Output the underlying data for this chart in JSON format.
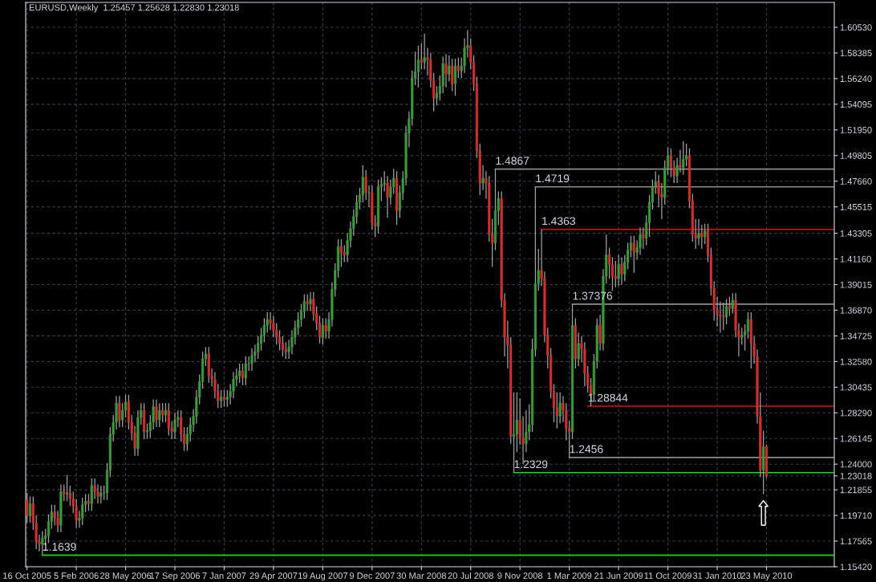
{
  "chart_data": {
    "type": "candlestick",
    "title": "EURUSD,Weekly  1.25457 1.25628 1.22830 1.23018",
    "x": [
      "2005-10-16",
      "2005-10-23",
      "2005-10-30",
      "2005-11-06",
      "2005-11-13",
      "2005-11-20",
      "2005-11-27",
      "2005-12-04",
      "2005-12-11",
      "2005-12-18",
      "2005-12-25",
      "2006-01-01",
      "2006-01-08",
      "2006-01-15",
      "2006-01-22",
      "2006-01-29",
      "2006-02-05",
      "2006-02-12",
      "2006-02-19",
      "2006-02-26",
      "2006-03-05",
      "2006-03-12",
      "2006-03-19",
      "2006-03-26",
      "2006-04-02",
      "2006-04-09",
      "2006-04-16",
      "2006-04-23",
      "2006-04-30",
      "2006-05-07",
      "2006-05-14",
      "2006-05-21",
      "2006-05-28",
      "2006-06-04",
      "2006-06-11",
      "2006-06-18",
      "2006-06-25",
      "2006-07-02",
      "2006-07-09",
      "2006-07-16",
      "2006-07-23",
      "2006-07-30",
      "2006-08-06",
      "2006-08-13",
      "2006-08-20",
      "2006-08-27",
      "2006-09-03",
      "2006-09-10",
      "2006-09-17",
      "2006-09-24",
      "2006-10-01",
      "2006-10-08",
      "2006-10-15",
      "2006-10-22",
      "2006-10-29",
      "2006-11-05",
      "2006-11-12",
      "2006-11-19",
      "2006-11-26",
      "2006-12-03",
      "2006-12-10",
      "2006-12-17",
      "2006-12-24",
      "2006-12-31",
      "2007-01-07",
      "2007-01-14",
      "2007-01-21",
      "2007-01-28",
      "2007-02-04",
      "2007-02-11",
      "2007-02-18",
      "2007-02-25",
      "2007-03-04",
      "2007-03-11",
      "2007-03-18",
      "2007-03-25",
      "2007-04-01",
      "2007-04-08",
      "2007-04-15",
      "2007-04-22",
      "2007-04-29",
      "2007-05-06",
      "2007-05-13",
      "2007-05-20",
      "2007-05-27",
      "2007-06-03",
      "2007-06-10",
      "2007-06-17",
      "2007-06-24",
      "2007-07-01",
      "2007-07-08",
      "2007-07-15",
      "2007-07-22",
      "2007-07-29",
      "2007-08-05",
      "2007-08-12",
      "2007-08-19",
      "2007-08-26",
      "2007-09-02",
      "2007-09-09",
      "2007-09-16",
      "2007-09-23",
      "2007-09-30",
      "2007-10-07",
      "2007-10-14",
      "2007-10-21",
      "2007-10-28",
      "2007-11-04",
      "2007-11-11",
      "2007-11-18",
      "2007-11-25",
      "2007-12-02",
      "2007-12-09",
      "2007-12-16",
      "2007-12-23",
      "2007-12-30",
      "2008-01-06",
      "2008-01-13",
      "2008-01-20",
      "2008-01-27",
      "2008-02-03",
      "2008-02-10",
      "2008-02-17",
      "2008-02-24",
      "2008-03-02",
      "2008-03-09",
      "2008-03-16",
      "2008-03-23",
      "2008-03-30",
      "2008-04-06",
      "2008-04-13",
      "2008-04-20",
      "2008-04-27",
      "2008-05-04",
      "2008-05-11",
      "2008-05-18",
      "2008-05-25",
      "2008-06-01",
      "2008-06-08",
      "2008-06-15",
      "2008-06-22",
      "2008-06-29",
      "2008-07-06",
      "2008-07-13",
      "2008-07-20",
      "2008-07-27",
      "2008-08-03",
      "2008-08-10",
      "2008-08-17",
      "2008-08-24",
      "2008-08-31",
      "2008-09-07",
      "2008-09-14",
      "2008-09-21",
      "2008-09-28",
      "2008-10-05",
      "2008-10-12",
      "2008-10-19",
      "2008-10-26",
      "2008-11-02",
      "2008-11-09",
      "2008-11-16",
      "2008-11-23",
      "2008-11-30",
      "2008-12-07",
      "2008-12-14",
      "2008-12-21",
      "2008-12-28",
      "2009-01-04",
      "2009-01-11",
      "2009-01-18",
      "2009-01-25",
      "2009-02-01",
      "2009-02-08",
      "2009-02-15",
      "2009-02-22",
      "2009-03-01",
      "2009-03-08",
      "2009-03-15",
      "2009-03-22",
      "2009-03-29",
      "2009-04-05",
      "2009-04-12",
      "2009-04-19",
      "2009-04-26",
      "2009-05-03",
      "2009-05-10",
      "2009-05-17",
      "2009-05-24",
      "2009-05-31",
      "2009-06-07",
      "2009-06-14",
      "2009-06-21",
      "2009-06-28",
      "2009-07-05",
      "2009-07-12",
      "2009-07-19",
      "2009-07-26",
      "2009-08-02",
      "2009-08-09",
      "2009-08-16",
      "2009-08-23",
      "2009-08-30",
      "2009-09-06",
      "2009-09-13",
      "2009-09-20",
      "2009-09-27",
      "2009-10-04",
      "2009-10-11",
      "2009-10-18",
      "2009-10-25",
      "2009-11-01",
      "2009-11-08",
      "2009-11-15",
      "2009-11-22",
      "2009-11-29",
      "2009-12-06",
      "2009-12-13",
      "2009-12-20",
      "2009-12-27",
      "2010-01-03",
      "2010-01-10",
      "2010-01-17",
      "2010-01-24",
      "2010-01-31",
      "2010-02-07",
      "2010-02-14",
      "2010-02-21",
      "2010-02-28",
      "2010-03-07",
      "2010-03-14",
      "2010-03-21",
      "2010-03-28",
      "2010-04-04",
      "2010-04-11",
      "2010-04-18",
      "2010-04-25",
      "2010-05-02",
      "2010-05-09",
      "2010-05-16",
      "2010-05-23"
    ],
    "ohlc": [
      [
        1.21,
        1.216,
        1.191,
        1.197
      ],
      [
        1.197,
        1.213,
        1.191,
        1.207
      ],
      [
        1.207,
        1.213,
        1.185,
        1.191
      ],
      [
        1.191,
        1.197,
        1.169,
        1.175
      ],
      [
        1.175,
        1.181,
        1.167,
        1.173
      ],
      [
        1.173,
        1.184,
        1.1639,
        1.178
      ],
      [
        1.178,
        1.186,
        1.172,
        1.18
      ],
      [
        1.18,
        1.198,
        1.174,
        1.192
      ],
      [
        1.192,
        1.206,
        1.186,
        1.2
      ],
      [
        1.2,
        1.206,
        1.189,
        1.195
      ],
      [
        1.195,
        1.201,
        1.183,
        1.189
      ],
      [
        1.189,
        1.223,
        1.183,
        1.217
      ],
      [
        1.217,
        1.223,
        1.209,
        1.215
      ],
      [
        1.215,
        1.231,
        1.209,
        1.216
      ],
      [
        1.216,
        1.222,
        1.205,
        1.211
      ],
      [
        1.211,
        1.217,
        1.199,
        1.205
      ],
      [
        1.205,
        1.211,
        1.187,
        1.193
      ],
      [
        1.193,
        1.201,
        1.187,
        1.195
      ],
      [
        1.195,
        1.212,
        1.189,
        1.206
      ],
      [
        1.206,
        1.215,
        1.2,
        1.209
      ],
      [
        1.209,
        1.215,
        1.201,
        1.207
      ],
      [
        1.207,
        1.228,
        1.201,
        1.222
      ],
      [
        1.222,
        1.228,
        1.211,
        1.217
      ],
      [
        1.217,
        1.223,
        1.207,
        1.213
      ],
      [
        1.213,
        1.222,
        1.207,
        1.216
      ],
      [
        1.216,
        1.222,
        1.21,
        1.216
      ],
      [
        1.216,
        1.241,
        1.21,
        1.235
      ],
      [
        1.235,
        1.271,
        1.229,
        1.265
      ],
      [
        1.265,
        1.281,
        1.259,
        1.275
      ],
      [
        1.275,
        1.297,
        1.269,
        1.291
      ],
      [
        1.291,
        1.297,
        1.271,
        1.277
      ],
      [
        1.277,
        1.291,
        1.271,
        1.285
      ],
      [
        1.285,
        1.298,
        1.279,
        1.292
      ],
      [
        1.292,
        1.298,
        1.269,
        1.275
      ],
      [
        1.275,
        1.281,
        1.26,
        1.266
      ],
      [
        1.266,
        1.272,
        1.247,
        1.253
      ],
      [
        1.253,
        1.285,
        1.247,
        1.279
      ],
      [
        1.279,
        1.291,
        1.273,
        1.285
      ],
      [
        1.285,
        1.291,
        1.261,
        1.267
      ],
      [
        1.267,
        1.274,
        1.261,
        1.268
      ],
      [
        1.268,
        1.281,
        1.262,
        1.275
      ],
      [
        1.275,
        1.294,
        1.269,
        1.288
      ],
      [
        1.288,
        1.294,
        1.271,
        1.277
      ],
      [
        1.277,
        1.291,
        1.271,
        1.285
      ],
      [
        1.285,
        1.291,
        1.275,
        1.281
      ],
      [
        1.281,
        1.291,
        1.275,
        1.285
      ],
      [
        1.285,
        1.291,
        1.264,
        1.27
      ],
      [
        1.27,
        1.276,
        1.261,
        1.267
      ],
      [
        1.267,
        1.283,
        1.261,
        1.277
      ],
      [
        1.277,
        1.285,
        1.271,
        1.279
      ],
      [
        1.279,
        1.285,
        1.259,
        1.265
      ],
      [
        1.265,
        1.271,
        1.251,
        1.257
      ],
      [
        1.257,
        1.271,
        1.251,
        1.265
      ],
      [
        1.265,
        1.279,
        1.259,
        1.273
      ],
      [
        1.273,
        1.286,
        1.267,
        1.28
      ],
      [
        1.28,
        1.302,
        1.274,
        1.296
      ],
      [
        1.296,
        1.315,
        1.29,
        1.309
      ],
      [
        1.309,
        1.334,
        1.303,
        1.328
      ],
      [
        1.328,
        1.338,
        1.322,
        1.332
      ],
      [
        1.332,
        1.338,
        1.308,
        1.314
      ],
      [
        1.314,
        1.32,
        1.305,
        1.311
      ],
      [
        1.311,
        1.317,
        1.295,
        1.301
      ],
      [
        1.301,
        1.307,
        1.287,
        1.293
      ],
      [
        1.293,
        1.302,
        1.287,
        1.296
      ],
      [
        1.296,
        1.302,
        1.288,
        1.294
      ],
      [
        1.294,
        1.302,
        1.288,
        1.296
      ],
      [
        1.296,
        1.307,
        1.29,
        1.301
      ],
      [
        1.301,
        1.317,
        1.295,
        1.311
      ],
      [
        1.311,
        1.32,
        1.305,
        1.314
      ],
      [
        1.314,
        1.324,
        1.308,
        1.318
      ],
      [
        1.318,
        1.324,
        1.306,
        1.312
      ],
      [
        1.312,
        1.33,
        1.306,
        1.324
      ],
      [
        1.324,
        1.33,
        1.318,
        1.324
      ],
      [
        1.324,
        1.337,
        1.318,
        1.331
      ],
      [
        1.331,
        1.34,
        1.325,
        1.334
      ],
      [
        1.334,
        1.347,
        1.328,
        1.341
      ],
      [
        1.341,
        1.354,
        1.335,
        1.348
      ],
      [
        1.348,
        1.362,
        1.342,
        1.356
      ],
      [
        1.356,
        1.367,
        1.35,
        1.361
      ],
      [
        1.361,
        1.367,
        1.352,
        1.358
      ],
      [
        1.358,
        1.364,
        1.346,
        1.352
      ],
      [
        1.352,
        1.358,
        1.34,
        1.346
      ],
      [
        1.346,
        1.352,
        1.335,
        1.341
      ],
      [
        1.341,
        1.347,
        1.33,
        1.336
      ],
      [
        1.336,
        1.342,
        1.328,
        1.334
      ],
      [
        1.334,
        1.344,
        1.328,
        1.338
      ],
      [
        1.338,
        1.352,
        1.332,
        1.346
      ],
      [
        1.346,
        1.36,
        1.34,
        1.354
      ],
      [
        1.354,
        1.367,
        1.348,
        1.361
      ],
      [
        1.361,
        1.374,
        1.355,
        1.368
      ],
      [
        1.368,
        1.382,
        1.362,
        1.376
      ],
      [
        1.376,
        1.382,
        1.368,
        1.374
      ],
      [
        1.374,
        1.384,
        1.368,
        1.378
      ],
      [
        1.378,
        1.384,
        1.36,
        1.366
      ],
      [
        1.366,
        1.372,
        1.352,
        1.358
      ],
      [
        1.358,
        1.364,
        1.341,
        1.346
      ],
      [
        1.346,
        1.362,
        1.34,
        1.356
      ],
      [
        1.356,
        1.362,
        1.345,
        1.351
      ],
      [
        1.351,
        1.367,
        1.345,
        1.361
      ],
      [
        1.361,
        1.392,
        1.355,
        1.386
      ],
      [
        1.386,
        1.408,
        1.38,
        1.402
      ],
      [
        1.402,
        1.428,
        1.396,
        1.422
      ],
      [
        1.422,
        1.428,
        1.405,
        1.417
      ],
      [
        1.417,
        1.423,
        1.409,
        1.415
      ],
      [
        1.415,
        1.433,
        1.409,
        1.427
      ],
      [
        1.427,
        1.443,
        1.421,
        1.437
      ],
      [
        1.437,
        1.453,
        1.431,
        1.447
      ],
      [
        1.447,
        1.465,
        1.441,
        1.459
      ],
      [
        1.459,
        1.471,
        1.453,
        1.465
      ],
      [
        1.465,
        1.49,
        1.459,
        1.48
      ],
      [
        1.48,
        1.486,
        1.461,
        1.467
      ],
      [
        1.467,
        1.473,
        1.455,
        1.467
      ],
      [
        1.467,
        1.473,
        1.436,
        1.442
      ],
      [
        1.442,
        1.448,
        1.43,
        1.439
      ],
      [
        1.439,
        1.478,
        1.433,
        1.472
      ],
      [
        1.472,
        1.48,
        1.46,
        1.474
      ],
      [
        1.474,
        1.485,
        1.468,
        1.475
      ],
      [
        1.475,
        1.481,
        1.446,
        1.463
      ],
      [
        1.463,
        1.478,
        1.457,
        1.472
      ],
      [
        1.472,
        1.487,
        1.466,
        1.479
      ],
      [
        1.479,
        1.485,
        1.44,
        1.452
      ],
      [
        1.452,
        1.473,
        1.446,
        1.467
      ],
      [
        1.467,
        1.485,
        1.461,
        1.479
      ],
      [
        1.479,
        1.523,
        1.473,
        1.517
      ],
      [
        1.517,
        1.535,
        1.505,
        1.529
      ],
      [
        1.529,
        1.569,
        1.523,
        1.563
      ],
      [
        1.563,
        1.585,
        1.557,
        1.568
      ],
      [
        1.568,
        1.59,
        1.555,
        1.578
      ],
      [
        1.578,
        1.592,
        1.57,
        1.576
      ],
      [
        1.576,
        1.6,
        1.57,
        1.58
      ],
      [
        1.58,
        1.588,
        1.565,
        1.578
      ],
      [
        1.578,
        1.584,
        1.555,
        1.561
      ],
      [
        1.561,
        1.567,
        1.535,
        1.546
      ],
      [
        1.546,
        1.556,
        1.54,
        1.55
      ],
      [
        1.55,
        1.565,
        1.544,
        1.556
      ],
      [
        1.556,
        1.581,
        1.55,
        1.575
      ],
      [
        1.575,
        1.583,
        1.555,
        1.566
      ],
      [
        1.566,
        1.582,
        1.56,
        1.573
      ],
      [
        1.573,
        1.579,
        1.552,
        1.558
      ],
      [
        1.558,
        1.579,
        1.548,
        1.573
      ],
      [
        1.573,
        1.58,
        1.563,
        1.569
      ],
      [
        1.569,
        1.58,
        1.563,
        1.573
      ],
      [
        1.573,
        1.596,
        1.567,
        1.588
      ],
      [
        1.588,
        1.603,
        1.58,
        1.59
      ],
      [
        1.59,
        1.596,
        1.57,
        1.576
      ],
      [
        1.576,
        1.582,
        1.552,
        1.558
      ],
      [
        1.558,
        1.564,
        1.496,
        1.502
      ],
      [
        1.502,
        1.508,
        1.465,
        1.475
      ],
      [
        1.475,
        1.49,
        1.469,
        1.479
      ],
      [
        1.479,
        1.485,
        1.462,
        1.475
      ],
      [
        1.475,
        1.481,
        1.426,
        1.432
      ],
      [
        1.432,
        1.445,
        1.405,
        1.425
      ],
      [
        1.425,
        1.4867,
        1.419,
        1.452
      ],
      [
        1.452,
        1.468,
        1.44,
        1.462
      ],
      [
        1.462,
        1.468,
        1.371,
        1.377
      ],
      [
        1.377,
        1.383,
        1.33,
        1.346
      ],
      [
        1.346,
        1.36,
        1.32,
        1.34
      ],
      [
        1.34,
        1.346,
        1.257,
        1.263
      ],
      [
        1.263,
        1.3,
        1.2329,
        1.265
      ],
      [
        1.265,
        1.3,
        1.25,
        1.277
      ],
      [
        1.277,
        1.295,
        1.256,
        1.262
      ],
      [
        1.262,
        1.28,
        1.24,
        1.257
      ],
      [
        1.257,
        1.285,
        1.25,
        1.267
      ],
      [
        1.267,
        1.29,
        1.26,
        1.273
      ],
      [
        1.273,
        1.345,
        1.267,
        1.336
      ],
      [
        1.336,
        1.4719,
        1.33,
        1.391
      ],
      [
        1.391,
        1.42,
        1.385,
        1.402
      ],
      [
        1.402,
        1.4363,
        1.389,
        1.395
      ],
      [
        1.395,
        1.401,
        1.342,
        1.348
      ],
      [
        1.348,
        1.354,
        1.32,
        1.331
      ],
      [
        1.331,
        1.337,
        1.295,
        1.301
      ],
      [
        1.301,
        1.307,
        1.275,
        1.287
      ],
      [
        1.287,
        1.3,
        1.27,
        1.28
      ],
      [
        1.28,
        1.3,
        1.274,
        1.291
      ],
      [
        1.291,
        1.297,
        1.275,
        1.285
      ],
      [
        1.285,
        1.291,
        1.26,
        1.27
      ],
      [
        1.27,
        1.276,
        1.2456,
        1.267
      ],
      [
        1.267,
        1.37376,
        1.261,
        1.356
      ],
      [
        1.356,
        1.362,
        1.32,
        1.328
      ],
      [
        1.328,
        1.35,
        1.322,
        1.341
      ],
      [
        1.341,
        1.347,
        1.325,
        1.336
      ],
      [
        1.336,
        1.342,
        1.305,
        1.316
      ],
      [
        1.316,
        1.322,
        1.3,
        1.306
      ],
      [
        1.306,
        1.312,
        1.28844,
        1.298
      ],
      [
        1.298,
        1.332,
        1.292,
        1.326
      ],
      [
        1.326,
        1.362,
        1.32,
        1.356
      ],
      [
        1.356,
        1.365,
        1.335,
        1.341
      ],
      [
        1.341,
        1.403,
        1.335,
        1.397
      ],
      [
        1.397,
        1.432,
        1.391,
        1.415
      ],
      [
        1.415,
        1.421,
        1.395,
        1.407
      ],
      [
        1.407,
        1.413,
        1.385,
        1.397
      ],
      [
        1.397,
        1.41,
        1.388,
        1.395
      ],
      [
        1.395,
        1.415,
        1.389,
        1.407
      ],
      [
        1.407,
        1.413,
        1.39,
        1.399
      ],
      [
        1.399,
        1.415,
        1.393,
        1.409
      ],
      [
        1.409,
        1.425,
        1.403,
        1.419
      ],
      [
        1.419,
        1.431,
        1.413,
        1.425
      ],
      [
        1.425,
        1.431,
        1.4,
        1.417
      ],
      [
        1.417,
        1.427,
        1.411,
        1.421
      ],
      [
        1.421,
        1.438,
        1.415,
        1.432
      ],
      [
        1.432,
        1.438,
        1.42,
        1.429
      ],
      [
        1.429,
        1.448,
        1.423,
        1.442
      ],
      [
        1.442,
        1.465,
        1.43,
        1.459
      ],
      [
        1.459,
        1.478,
        1.453,
        1.472
      ],
      [
        1.472,
        1.485,
        1.466,
        1.476
      ],
      [
        1.476,
        1.482,
        1.455,
        1.466
      ],
      [
        1.466,
        1.475,
        1.445,
        1.463
      ],
      [
        1.463,
        1.494,
        1.457,
        1.488
      ],
      [
        1.488,
        1.505,
        1.482,
        1.498
      ],
      [
        1.498,
        1.504,
        1.48,
        1.488
      ],
      [
        1.488,
        1.494,
        1.475,
        1.481
      ],
      [
        1.481,
        1.496,
        1.475,
        1.49
      ],
      [
        1.49,
        1.503,
        1.484,
        1.488
      ],
      [
        1.488,
        1.51,
        1.482,
        1.495
      ],
      [
        1.495,
        1.508,
        1.489,
        1.498
      ],
      [
        1.498,
        1.504,
        1.454,
        1.46
      ],
      [
        1.46,
        1.466,
        1.426,
        1.432
      ],
      [
        1.432,
        1.445,
        1.42,
        1.429
      ],
      [
        1.429,
        1.445,
        1.423,
        1.433
      ],
      [
        1.433,
        1.44,
        1.42,
        1.43
      ],
      [
        1.43,
        1.441,
        1.424,
        1.435
      ],
      [
        1.435,
        1.441,
        1.409,
        1.415
      ],
      [
        1.415,
        1.421,
        1.381,
        1.387
      ],
      [
        1.387,
        1.393,
        1.36,
        1.369
      ],
      [
        1.369,
        1.38,
        1.355,
        1.365
      ],
      [
        1.365,
        1.376,
        1.35,
        1.364
      ],
      [
        1.364,
        1.375,
        1.352,
        1.363
      ],
      [
        1.363,
        1.378,
        1.357,
        1.372
      ],
      [
        1.372,
        1.38,
        1.364,
        1.37
      ],
      [
        1.37,
        1.383,
        1.366,
        1.377
      ],
      [
        1.377,
        1.383,
        1.346,
        1.352
      ],
      [
        1.352,
        1.358,
        1.33,
        1.346
      ],
      [
        1.346,
        1.354,
        1.34,
        1.348
      ],
      [
        1.348,
        1.357,
        1.335,
        1.351
      ],
      [
        1.351,
        1.367,
        1.345,
        1.361
      ],
      [
        1.361,
        1.367,
        1.32,
        1.341
      ],
      [
        1.341,
        1.347,
        1.324,
        1.33
      ],
      [
        1.33,
        1.336,
        1.274,
        1.28
      ],
      [
        1.28,
        1.3,
        1.229,
        1.235
      ],
      [
        1.235,
        1.268,
        1.215,
        1.25457
      ],
      [
        1.25457,
        1.25628,
        1.2283,
        1.23018
      ]
    ],
    "series": [
      {
        "type": "line",
        "x": [
          "2008-09-14",
          "2010-10-24"
        ],
        "values": [
          1.4867,
          1.4867
        ],
        "color": "#8c8c8c"
      },
      {
        "type": "line",
        "x": [
          "2008-12-14",
          "2010-10-24"
        ],
        "values": [
          1.4719,
          1.4719
        ],
        "color": "#8c8c8c"
      },
      {
        "type": "line",
        "x": [
          "2008-12-28",
          "2010-10-24"
        ],
        "values": [
          1.4363,
          1.4363
        ],
        "color": "#e01010"
      },
      {
        "type": "line",
        "x": [
          "2009-03-08",
          "2010-10-24"
        ],
        "values": [
          1.37376,
          1.37376
        ],
        "color": "#8c8c8c"
      },
      {
        "type": "line",
        "x": [
          "2009-04-12",
          "2010-10-24"
        ],
        "values": [
          1.28844,
          1.28844
        ],
        "color": "#e01010"
      },
      {
        "type": "line",
        "x": [
          "2009-03-01",
          "2010-10-24"
        ],
        "values": [
          1.2456,
          1.2456
        ],
        "color": "#8c8c8c"
      },
      {
        "type": "line",
        "x": [
          "2008-10-26",
          "2010-10-24"
        ],
        "values": [
          1.2329,
          1.2329
        ],
        "color": "#10e010"
      },
      {
        "type": "line",
        "x": [
          "2005-11-20",
          "2010-10-24"
        ],
        "values": [
          1.1639,
          1.1639
        ],
        "color": "#10e010"
      }
    ],
    "annotations": [
      {
        "text": "1.4867",
        "x": "2008-09-14",
        "y": 1.4867
      },
      {
        "text": "1.4719",
        "x": "2008-12-14",
        "y": 1.4719
      },
      {
        "text": "1.4363",
        "x": "2008-12-28",
        "y": 1.4363
      },
      {
        "text": "1.37376",
        "x": "2009-03-08",
        "y": 1.37376
      },
      {
        "text": "1.28844",
        "x": "2009-04-12",
        "y": 1.28844
      },
      {
        "text": "1.2456",
        "x": "2009-03-01",
        "y": 1.2456
      },
      {
        "text": "1.2329",
        "x": "2008-10-26",
        "y": 1.2329
      },
      {
        "text": "1.1639",
        "x": "2005-11-20",
        "y": 1.1639
      }
    ],
    "xlim": [
      "2005-10-13",
      "2010-10-24"
    ],
    "xticks": [
      {
        "value": "2005-10-16",
        "label": "16 Oct 2005"
      },
      {
        "value": "2006-02-05",
        "label": "5 Feb 2006"
      },
      {
        "value": "2006-05-28",
        "label": "28 May 2006"
      },
      {
        "value": "2006-09-17",
        "label": "17 Sep 2006"
      },
      {
        "value": "2007-01-07",
        "label": "7 Jan 2007"
      },
      {
        "value": "2007-04-29",
        "label": "29 Apr 2007"
      },
      {
        "value": "2007-08-19",
        "label": "19 Aug 2007"
      },
      {
        "value": "2007-12-09",
        "label": "9 Dec 2007"
      },
      {
        "value": "2008-03-30",
        "label": "30 Mar 2008"
      },
      {
        "value": "2008-07-20",
        "label": "20 Jul 2008"
      },
      {
        "value": "2008-11-09",
        "label": "9 Nov 2008"
      },
      {
        "value": "2009-03-01",
        "label": "1 Mar 2009"
      },
      {
        "value": "2009-06-21",
        "label": "21 Jun 2009"
      },
      {
        "value": "2009-10-11",
        "label": "11 Oct 2009"
      },
      {
        "value": "2010-01-31",
        "label": "31 Jan 2010"
      },
      {
        "value": "2010-05-23",
        "label": "23 May 2010"
      }
    ],
    "ylim": [
      1.1542,
      1.6261
    ],
    "yticks": [
      {
        "value": 1.6053,
        "label": "1.60530"
      },
      {
        "value": 1.58385,
        "label": "1.58385"
      },
      {
        "value": 1.5624,
        "label": "1.56240"
      },
      {
        "value": 1.54095,
        "label": "1.54095"
      },
      {
        "value": 1.5195,
        "label": "1.51950"
      },
      {
        "value": 1.49805,
        "label": "1.49805"
      },
      {
        "value": 1.4766,
        "label": "1.47660"
      },
      {
        "value": 1.45515,
        "label": "1.45515"
      },
      {
        "value": 1.43305,
        "label": "1.43305"
      },
      {
        "value": 1.4116,
        "label": "1.41160"
      },
      {
        "value": 1.39015,
        "label": "1.39015"
      },
      {
        "value": 1.3687,
        "label": "1.36870"
      },
      {
        "value": 1.34725,
        "label": "1.34725"
      },
      {
        "value": 1.3258,
        "label": "1.32580"
      },
      {
        "value": 1.30435,
        "label": "1.30435"
      },
      {
        "value": 1.2829,
        "label": "1.28290"
      },
      {
        "value": 1.26145,
        "label": "1.26145"
      },
      {
        "value": 1.24,
        "label": "1.24000"
      },
      {
        "value": 1.23018,
        "label": "1.23018"
      },
      {
        "value": 1.21855,
        "label": "1.21855"
      },
      {
        "value": 1.1971,
        "label": "1.19710"
      },
      {
        "value": 1.17565,
        "label": "1.17565"
      },
      {
        "value": 1.1542,
        "label": "1.15420"
      }
    ],
    "grid": true
  }
}
